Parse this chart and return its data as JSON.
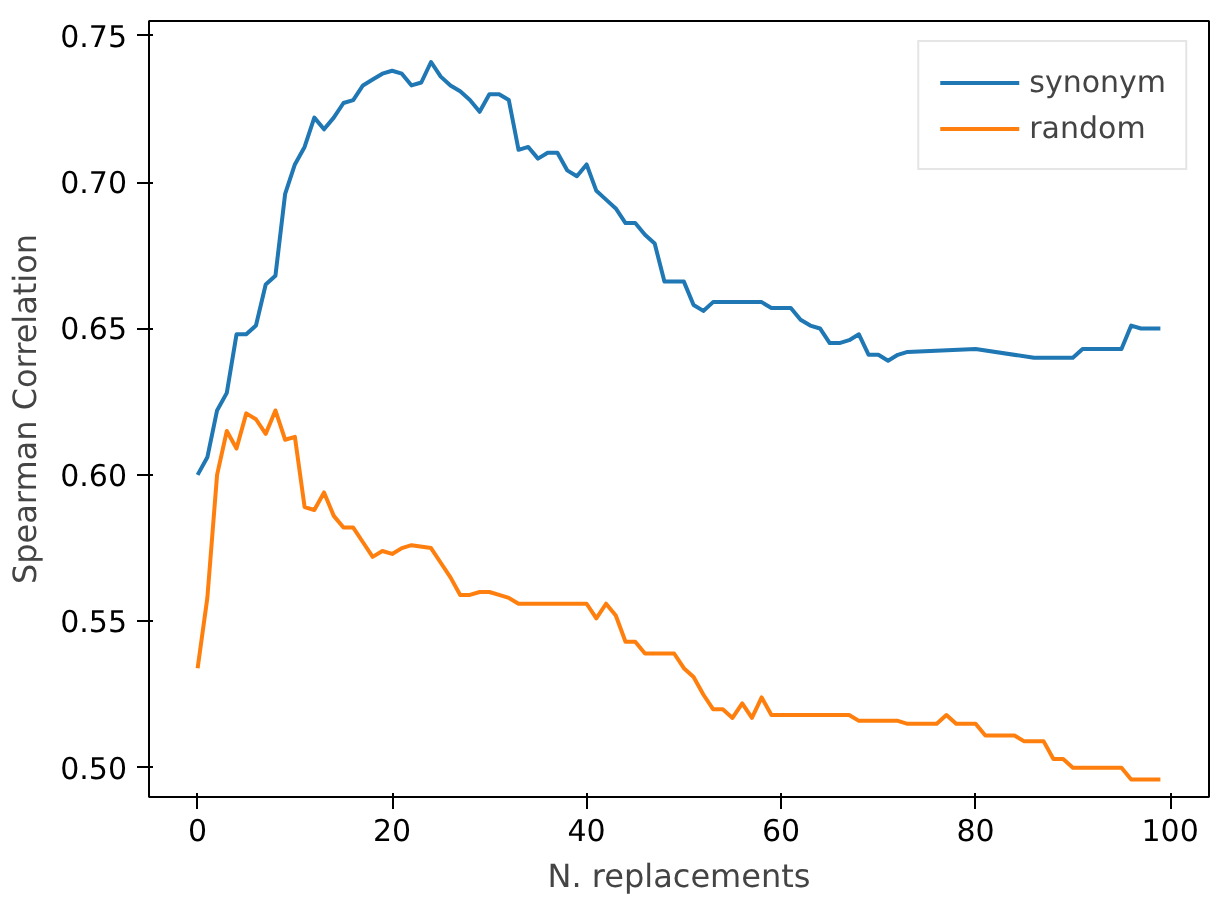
{
  "chart_data": {
    "type": "line",
    "xlabel": "N. replacements",
    "ylabel": "Spearman Correlation",
    "xlim": [
      -5,
      104
    ],
    "ylim": [
      0.49,
      0.755
    ],
    "xticks": [
      0,
      20,
      40,
      60,
      80,
      100
    ],
    "yticks": [
      {
        "value": 0.5,
        "label": "0.50"
      },
      {
        "value": 0.55,
        "label": "0.55"
      },
      {
        "value": 0.6,
        "label": "0.60"
      },
      {
        "value": 0.65,
        "label": "0.65"
      },
      {
        "value": 0.7,
        "label": "0.70"
      },
      {
        "value": 0.75,
        "label": "0.75"
      }
    ],
    "grid": false,
    "legend": "top right",
    "series": [
      {
        "name": "synonym",
        "color": "#1f77b4",
        "x": [
          0,
          1,
          2,
          3,
          4,
          5,
          6,
          7,
          8,
          9,
          10,
          11,
          12,
          13,
          14,
          15,
          16,
          17,
          18,
          19,
          20,
          21,
          22,
          23,
          24,
          25,
          26,
          27,
          28,
          29,
          30,
          31,
          32,
          33,
          34,
          35,
          36,
          37,
          38,
          39,
          40,
          41,
          42,
          43,
          44,
          45,
          46,
          47,
          48,
          49,
          50,
          51,
          52,
          53,
          58,
          59,
          61,
          62,
          63,
          64,
          65,
          66,
          67,
          68,
          69,
          70,
          71,
          72,
          73,
          80,
          86,
          90,
          91,
          95,
          96,
          97,
          99
        ],
        "values": [
          0.6,
          0.606,
          0.622,
          0.628,
          0.648,
          0.648,
          0.651,
          0.665,
          0.668,
          0.696,
          0.706,
          0.712,
          0.722,
          0.718,
          0.722,
          0.727,
          0.728,
          0.733,
          0.735,
          0.737,
          0.738,
          0.737,
          0.733,
          0.734,
          0.741,
          0.736,
          0.733,
          0.731,
          0.728,
          0.724,
          0.73,
          0.73,
          0.728,
          0.711,
          0.712,
          0.708,
          0.71,
          0.71,
          0.704,
          0.702,
          0.706,
          0.697,
          0.694,
          0.691,
          0.686,
          0.686,
          0.682,
          0.679,
          0.666,
          0.666,
          0.666,
          0.658,
          0.656,
          0.659,
          0.659,
          0.657,
          0.657,
          0.653,
          0.651,
          0.65,
          0.645,
          0.645,
          0.646,
          0.648,
          0.641,
          0.641,
          0.639,
          0.641,
          0.642,
          0.643,
          0.64,
          0.64,
          0.643,
          0.643,
          0.651,
          0.65,
          0.65
        ]
      },
      {
        "name": "random",
        "color": "#ff7f0e",
        "x": [
          0,
          1,
          2,
          3,
          4,
          5,
          6,
          7,
          8,
          9,
          10,
          11,
          12,
          13,
          14,
          15,
          16,
          17,
          18,
          19,
          20,
          21,
          22,
          24,
          25,
          26,
          27,
          28,
          29,
          30,
          31,
          32,
          33,
          40,
          41,
          42,
          43,
          44,
          45,
          46,
          49,
          50,
          51,
          52,
          53,
          54,
          55,
          56,
          57,
          58,
          59,
          67,
          68,
          72,
          73,
          76,
          77,
          78,
          80,
          81,
          84,
          85,
          87,
          88,
          89,
          90,
          95,
          96,
          99
        ],
        "values": [
          0.534,
          0.558,
          0.6,
          0.615,
          0.609,
          0.621,
          0.619,
          0.614,
          0.622,
          0.612,
          0.613,
          0.589,
          0.588,
          0.594,
          0.586,
          0.582,
          0.582,
          0.577,
          0.572,
          0.574,
          0.573,
          0.575,
          0.576,
          0.575,
          0.57,
          0.565,
          0.559,
          0.559,
          0.56,
          0.56,
          0.559,
          0.558,
          0.556,
          0.556,
          0.551,
          0.556,
          0.552,
          0.543,
          0.543,
          0.539,
          0.539,
          0.534,
          0.531,
          0.525,
          0.52,
          0.52,
          0.517,
          0.522,
          0.517,
          0.524,
          0.518,
          0.518,
          0.516,
          0.516,
          0.515,
          0.515,
          0.518,
          0.515,
          0.515,
          0.511,
          0.511,
          0.509,
          0.509,
          0.503,
          0.503,
          0.5,
          0.5,
          0.496,
          0.496
        ]
      }
    ]
  }
}
